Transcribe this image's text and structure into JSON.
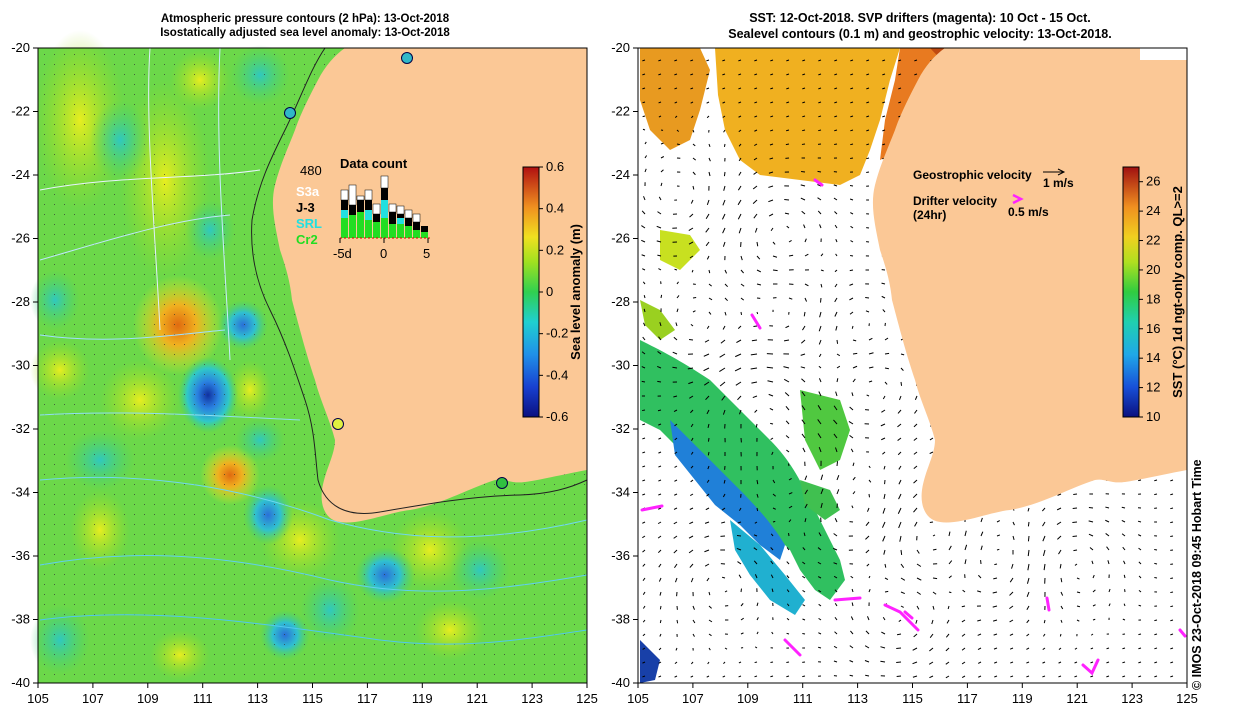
{
  "left_panel": {
    "title_line1": "Atmospheric pressure contours (2 hPa): 13-Oct-2018",
    "title_line2": "Isostatically adjusted sea level anomaly: 13-Oct-2018",
    "y_ticks": [
      "-20",
      "-22",
      "-24",
      "-26",
      "-28",
      "-30",
      "-32",
      "-34",
      "-36",
      "-38",
      "-40"
    ],
    "x_ticks": [
      "105",
      "107",
      "109",
      "111",
      "113",
      "115",
      "117",
      "119",
      "121",
      "123",
      "125"
    ],
    "colorbar": {
      "label": "Sea level anomaly (m)",
      "ticks": [
        "0.6",
        "0.4",
        "0.2",
        "0",
        "-0.2",
        "-0.4",
        "-0.6"
      ],
      "range": [
        -0.6,
        0.6
      ]
    },
    "data_count": {
      "title": "Data count",
      "max_label": "480",
      "missions": [
        {
          "name": "S3a",
          "color": "#ffffff"
        },
        {
          "name": "J-3",
          "color": "#000000"
        },
        {
          "name": "SRL",
          "color": "#22e0e0"
        },
        {
          "name": "Cr2",
          "color": "#22dd22"
        }
      ],
      "x_ticks": [
        "-5d",
        "0",
        "5"
      ]
    }
  },
  "right_panel": {
    "title_line1": "SST: 12-Oct-2018. SVP drifters (magenta): 10 Oct - 15 Oct.",
    "title_line2": "Sealevel contours (0.1 m) and geostrophic velocity: 13-Oct-2018.",
    "y_ticks": [
      "-20",
      "-22",
      "-24",
      "-26",
      "-28",
      "-30",
      "-32",
      "-34",
      "-36",
      "-38",
      "-40"
    ],
    "x_ticks": [
      "105",
      "107",
      "109",
      "111",
      "113",
      "115",
      "117",
      "119",
      "121",
      "123",
      "125"
    ],
    "legend": {
      "geo_label": "Geostrophic velocity",
      "geo_scale": "1 m/s",
      "drifter_label": "Drifter velocity",
      "drifter_sub": "(24hr)",
      "drifter_scale": "0.5 m/s"
    },
    "colorbar": {
      "label": "SST (°C) 1d ngt-only comp. QL>=2",
      "ticks": [
        "26",
        "24",
        "22",
        "20",
        "18",
        "16",
        "14",
        "12",
        "10"
      ],
      "range": [
        10,
        27
      ]
    }
  },
  "credit": "©  IMOS 23-Oct-2018 09:45 Hobart Time",
  "colors": {
    "land": "#fbc896",
    "drifter": "#ff22ff"
  }
}
